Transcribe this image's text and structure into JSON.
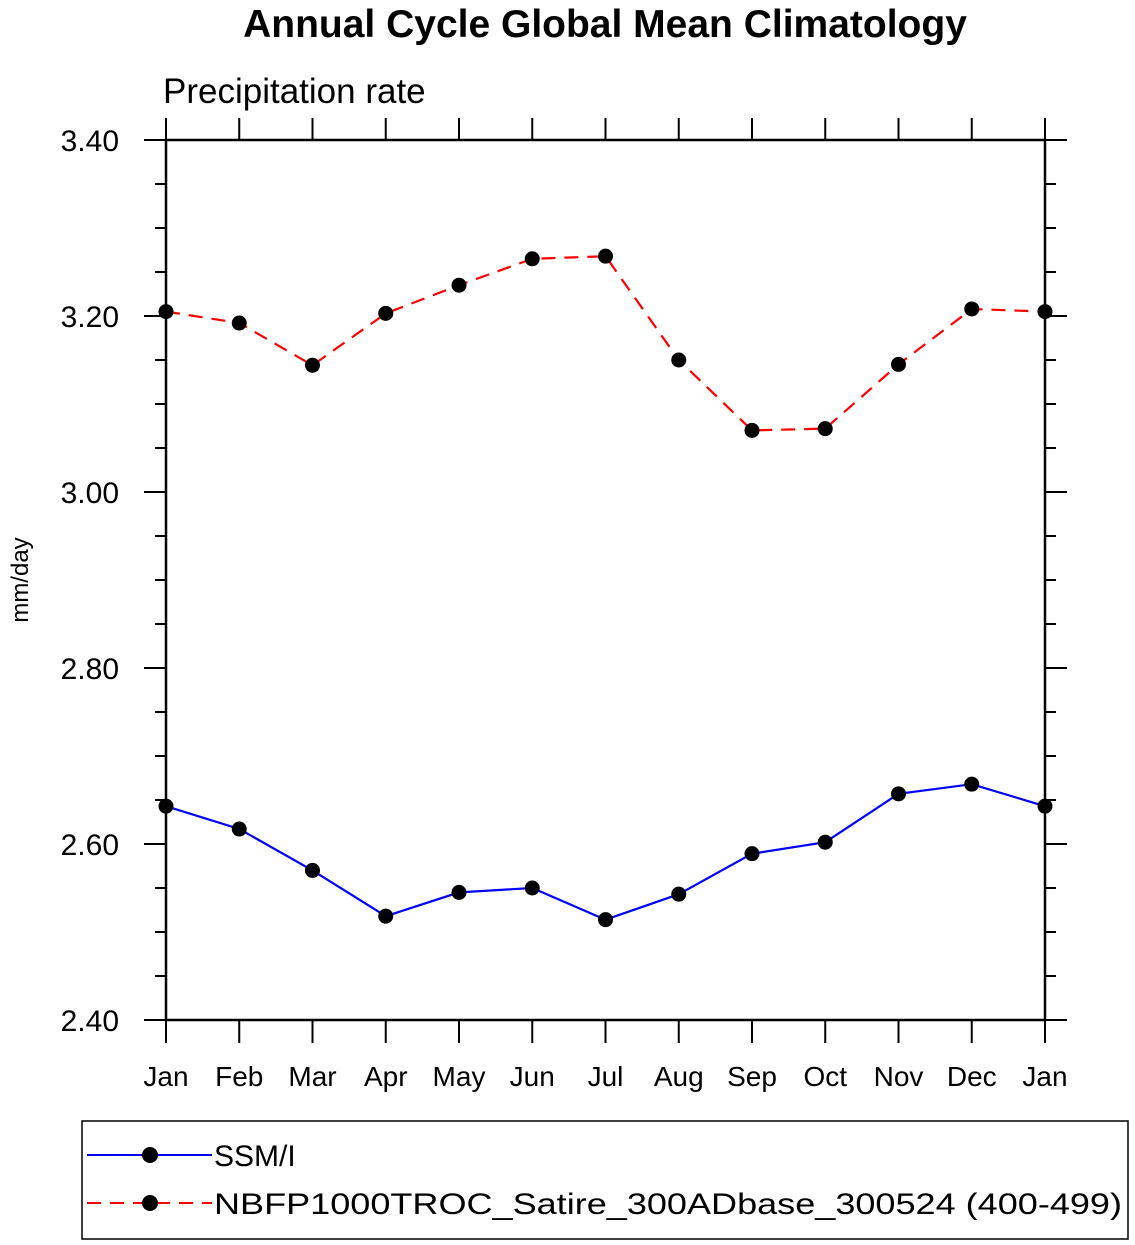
{
  "chart_data": {
    "type": "line",
    "title": "Annual Cycle Global Mean Climatology",
    "subtitle": "Precipitation rate",
    "xlabel": "",
    "ylabel": "mm/day",
    "categories": [
      "Jan",
      "Feb",
      "Mar",
      "Apr",
      "May",
      "Jun",
      "Jul",
      "Aug",
      "Sep",
      "Oct",
      "Nov",
      "Dec",
      "Jan"
    ],
    "ylim": [
      2.4,
      3.4
    ],
    "yticks": [
      "2.40",
      "2.60",
      "2.80",
      "3.00",
      "3.20",
      "3.40"
    ],
    "ytick_values": [
      2.4,
      2.6,
      2.8,
      3.0,
      3.2,
      3.4
    ],
    "yminor_step": 0.05,
    "grid": false,
    "legend_position": "bottom",
    "series": [
      {
        "name": "SSM/I",
        "color": "#0000ff",
        "line_style": "solid",
        "marker": "filled-circle",
        "values": [
          2.643,
          2.617,
          2.57,
          2.518,
          2.545,
          2.55,
          2.514,
          2.543,
          2.589,
          2.602,
          2.657,
          2.668,
          2.643
        ]
      },
      {
        "name": "NBFP1000TROC_Satire_300ADbase_300524 (400-499)",
        "color": "#ff0000",
        "line_style": "dashed",
        "marker": "filled-circle",
        "values": [
          3.205,
          3.192,
          3.144,
          3.203,
          3.235,
          3.265,
          3.268,
          3.15,
          3.07,
          3.072,
          3.145,
          3.208,
          3.205
        ]
      }
    ]
  }
}
